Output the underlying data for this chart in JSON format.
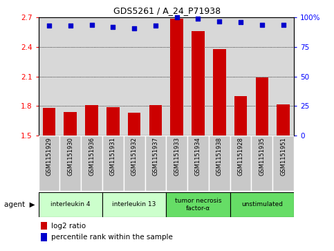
{
  "title": "GDS5261 / A_24_P71938",
  "samples": [
    "GSM1151929",
    "GSM1151930",
    "GSM1151936",
    "GSM1151931",
    "GSM1151932",
    "GSM1151937",
    "GSM1151933",
    "GSM1151934",
    "GSM1151938",
    "GSM1151928",
    "GSM1151935",
    "GSM1151951"
  ],
  "log2_ratio": [
    1.78,
    1.74,
    1.81,
    1.79,
    1.73,
    1.81,
    2.69,
    2.56,
    2.38,
    1.9,
    2.09,
    1.82
  ],
  "percentile_rank": [
    93,
    93,
    94,
    92,
    91,
    93,
    100,
    99,
    97,
    96,
    94,
    94
  ],
  "agents": [
    {
      "label": "interleukin 4",
      "samples": [
        0,
        1,
        2
      ],
      "color": "#ccffcc"
    },
    {
      "label": "interleukin 13",
      "samples": [
        3,
        4,
        5
      ],
      "color": "#ccffcc"
    },
    {
      "label": "tumor necrosis\nfactor-α",
      "samples": [
        6,
        7,
        8
      ],
      "color": "#66dd66"
    },
    {
      "label": "unstimulated",
      "samples": [
        9,
        10,
        11
      ],
      "color": "#66dd66"
    }
  ],
  "bar_color": "#cc0000",
  "dot_color": "#0000cc",
  "ylim_left": [
    1.5,
    2.7
  ],
  "ylim_right": [
    0,
    100
  ],
  "yticks_left": [
    1.5,
    1.8,
    2.1,
    2.4,
    2.7
  ],
  "yticks_right": [
    0,
    25,
    50,
    75,
    100
  ],
  "ytick_labels_left": [
    "1.5",
    "1.8",
    "2.1",
    "2.4",
    "2.7"
  ],
  "ytick_labels_right": [
    "0",
    "25",
    "50",
    "75",
    "100%"
  ],
  "plot_bg_color": "#d8d8d8",
  "sample_box_color": "#c8c8c8",
  "legend_log2": "log2 ratio",
  "legend_pct": "percentile rank within the sample"
}
